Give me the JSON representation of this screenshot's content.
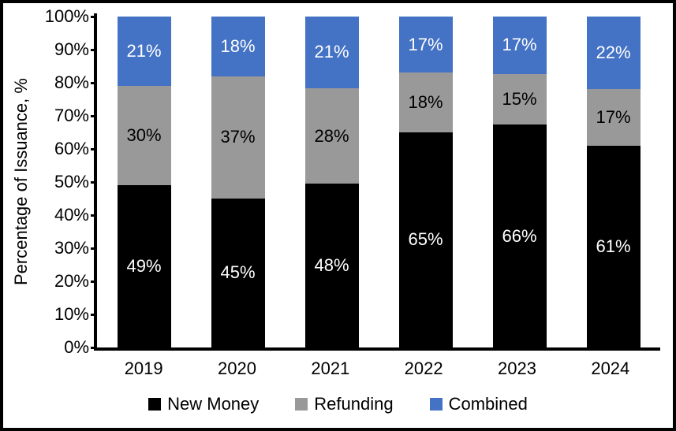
{
  "chart_data": {
    "type": "bar",
    "stacked": true,
    "stacked_to_100": true,
    "title": "",
    "xlabel": "",
    "ylabel": "Percentage of Issuance, %",
    "ylim": [
      0,
      100
    ],
    "ytick_step": 10,
    "ytick_suffix": "%",
    "grid": false,
    "legend_position": "bottom",
    "categories": [
      "2019",
      "2020",
      "2021",
      "2022",
      "2023",
      "2024"
    ],
    "series": [
      {
        "name": "New Money",
        "color": "#000000",
        "label_color": "#ffffff",
        "values": [
          49,
          45,
          48,
          65,
          66,
          61
        ],
        "labels": [
          "49%",
          "45%",
          "48%",
          "65%",
          "66%",
          "61%"
        ]
      },
      {
        "name": "Refunding",
        "color": "#999999",
        "label_color": "#000000",
        "values": [
          30,
          37,
          28,
          18,
          15,
          17
        ],
        "labels": [
          "30%",
          "37%",
          "28%",
          "18%",
          "15%",
          "17%"
        ]
      },
      {
        "name": "Combined",
        "color": "#4472C4",
        "label_color": "#ffffff",
        "values": [
          21,
          18,
          21,
          17,
          17,
          22
        ],
        "labels": [
          "21%",
          "18%",
          "21%",
          "17%",
          "17%",
          "22%"
        ]
      }
    ],
    "colors": {
      "new_money": "#000000",
      "refunding": "#999999",
      "combined": "#4472C4",
      "axis": "#000000",
      "background": "#ffffff",
      "border": "#000000"
    }
  }
}
